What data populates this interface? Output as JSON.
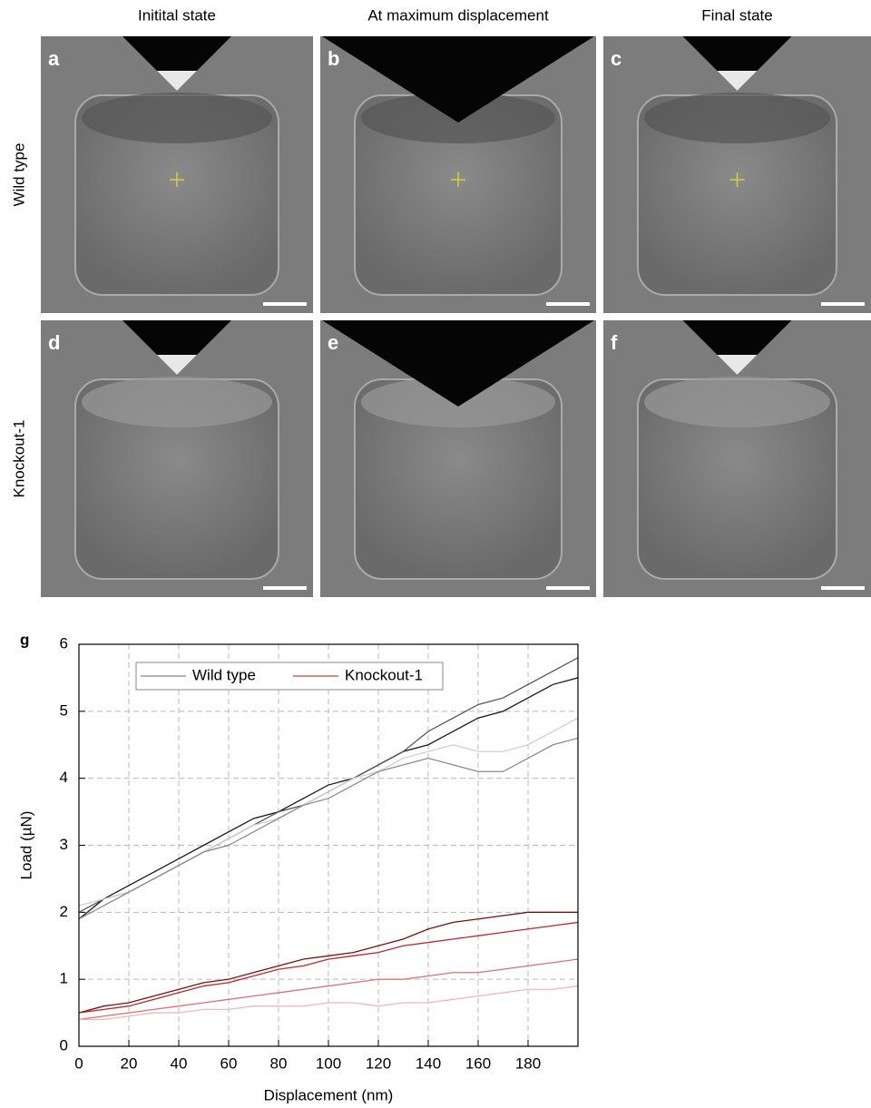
{
  "figure": {
    "columns": [
      "Initital state",
      "At maximum displacement",
      "Final state"
    ],
    "rows": [
      "Wild type",
      "Knockout-1"
    ],
    "panels": [
      "a",
      "b",
      "c",
      "d",
      "e",
      "f"
    ]
  },
  "chart_data": {
    "type": "line",
    "label": "g",
    "x_label": "Displacement (nm)",
    "y_label": "Load (µN)",
    "x": [
      0,
      10,
      20,
      30,
      40,
      50,
      60,
      70,
      80,
      90,
      100,
      110,
      120,
      130,
      140,
      150,
      160,
      170,
      180,
      190,
      200
    ],
    "xlim": [
      0,
      200
    ],
    "ylim": [
      0,
      6
    ],
    "xticks": [
      0,
      20,
      40,
      60,
      80,
      100,
      120,
      140,
      160,
      180
    ],
    "yticks": [
      0,
      1,
      2,
      3,
      4,
      5,
      6
    ],
    "grid": true,
    "legend": "top",
    "series": [
      {
        "name": "Wild type",
        "color": "#999999",
        "traces": [
          {
            "color": "#1a1a1a",
            "values": [
              1.9,
              2.2,
              2.4,
              2.6,
              2.8,
              3.0,
              3.2,
              3.4,
              3.5,
              3.7,
              3.9,
              4.0,
              4.2,
              4.4,
              4.5,
              4.7,
              4.9,
              5.0,
              5.2,
              5.4,
              5.5
            ]
          },
          {
            "color": "#555555",
            "values": [
              2.0,
              2.2,
              2.3,
              2.5,
              2.7,
              2.9,
              3.1,
              3.3,
              3.5,
              3.6,
              3.8,
              4.0,
              4.2,
              4.4,
              4.7,
              4.9,
              5.1,
              5.2,
              5.4,
              5.6,
              5.8
            ]
          },
          {
            "color": "#d0d0d0",
            "values": [
              2.1,
              2.2,
              2.3,
              2.5,
              2.7,
              2.9,
              3.1,
              3.3,
              3.4,
              3.6,
              3.8,
              4.0,
              4.1,
              4.3,
              4.4,
              4.5,
              4.4,
              4.4,
              4.5,
              4.7,
              4.9
            ]
          },
          {
            "color": "#8c8c8c",
            "values": [
              1.9,
              2.1,
              2.3,
              2.5,
              2.7,
              2.9,
              3.0,
              3.2,
              3.4,
              3.6,
              3.7,
              3.9,
              4.1,
              4.2,
              4.3,
              4.2,
              4.1,
              4.1,
              4.3,
              4.5,
              4.6
            ]
          }
        ]
      },
      {
        "name": "Knockout-1",
        "color": "#d06060",
        "traces": [
          {
            "color": "#7a1010",
            "values": [
              0.5,
              0.6,
              0.65,
              0.75,
              0.85,
              0.95,
              1.0,
              1.1,
              1.2,
              1.3,
              1.35,
              1.4,
              1.5,
              1.6,
              1.75,
              1.85,
              1.9,
              1.95,
              2.0,
              2.0,
              2.0
            ]
          },
          {
            "color": "#c0282a",
            "values": [
              0.5,
              0.55,
              0.6,
              0.7,
              0.8,
              0.9,
              0.95,
              1.05,
              1.15,
              1.2,
              1.3,
              1.35,
              1.4,
              1.5,
              1.55,
              1.6,
              1.65,
              1.7,
              1.75,
              1.8,
              1.85
            ]
          },
          {
            "color": "#e07070",
            "values": [
              0.4,
              0.45,
              0.5,
              0.55,
              0.6,
              0.65,
              0.7,
              0.75,
              0.8,
              0.85,
              0.9,
              0.95,
              1.0,
              1.0,
              1.05,
              1.1,
              1.1,
              1.15,
              1.2,
              1.25,
              1.3
            ]
          },
          {
            "color": "#f2b8b8",
            "values": [
              0.4,
              0.4,
              0.45,
              0.5,
              0.5,
              0.55,
              0.55,
              0.6,
              0.6,
              0.6,
              0.65,
              0.65,
              0.6,
              0.65,
              0.65,
              0.7,
              0.75,
              0.8,
              0.85,
              0.85,
              0.9
            ]
          }
        ]
      }
    ]
  }
}
